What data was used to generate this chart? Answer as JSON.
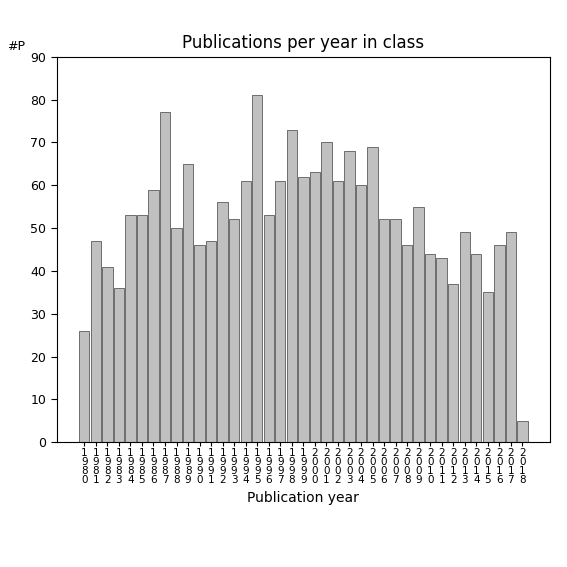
{
  "title": "Publications per year in class",
  "xlabel": "Publication year",
  "ylabel": "#P",
  "years": [
    1980,
    1981,
    1982,
    1983,
    1984,
    1985,
    1986,
    1987,
    1988,
    1989,
    1990,
    1991,
    1992,
    1993,
    1994,
    1995,
    1996,
    1997,
    1998,
    1999,
    2000,
    2001,
    2002,
    2003,
    2004,
    2005,
    2006,
    2007,
    2008,
    2009,
    2010,
    2011,
    2012,
    2013,
    2014,
    2015,
    2016,
    2017,
    2018
  ],
  "values": [
    26,
    47,
    41,
    36,
    53,
    53,
    59,
    77,
    50,
    65,
    46,
    47,
    56,
    52,
    61,
    81,
    53,
    61,
    73,
    62,
    63,
    70,
    61,
    68,
    60,
    69,
    52,
    52,
    46,
    55,
    44,
    43,
    37,
    49,
    44,
    35,
    46,
    49,
    5
  ],
  "bar_color": "#c0c0c0",
  "bar_edge_color": "#404040",
  "ylim": [
    0,
    90
  ],
  "yticks": [
    0,
    10,
    20,
    30,
    40,
    50,
    60,
    70,
    80,
    90
  ],
  "background_color": "#ffffff",
  "title_fontsize": 12,
  "xlabel_fontsize": 10,
  "tick_fontsize": 9,
  "ylabel_fontsize": 9
}
